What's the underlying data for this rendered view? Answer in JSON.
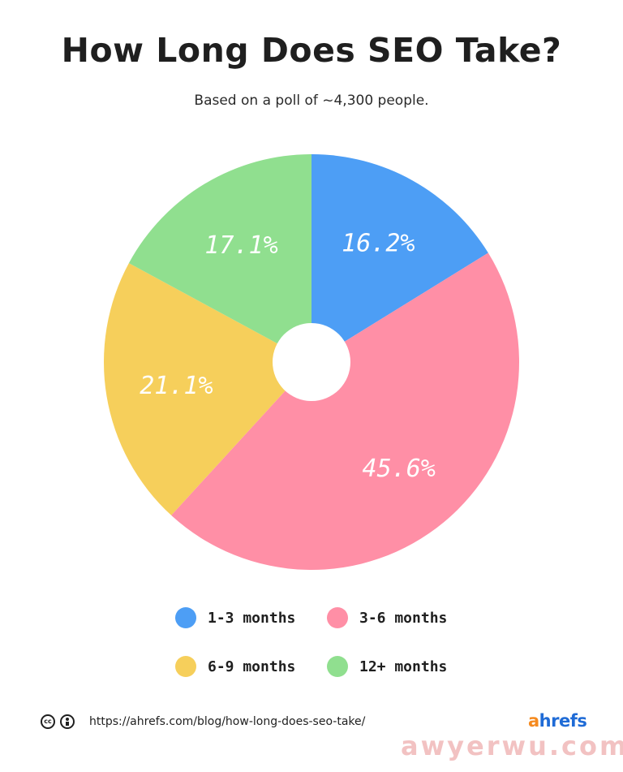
{
  "title": "How Long Does SEO Take?",
  "subtitle": "Based on a poll of ~4,300 people.",
  "chart_data": {
    "type": "pie",
    "title": "How Long Does SEO Take?",
    "subtitle": "Based on a poll of ~4,300 people.",
    "legend_position": "bottom",
    "slices": [
      {
        "label": "1-3 months",
        "value": 16.2,
        "display": "16.2%",
        "color": "#4d9ef5"
      },
      {
        "label": "3-6 months",
        "value": 45.6,
        "display": "45.6%",
        "color": "#ff8fa6"
      },
      {
        "label": "6-9 months",
        "value": 21.1,
        "display": "21.1%",
        "color": "#f6cf5b"
      },
      {
        "label": "12+ months",
        "value": 17.1,
        "display": "17.1%",
        "color": "#90df8f"
      }
    ]
  },
  "footer": {
    "license_icons": [
      "cc-icon",
      "by-icon"
    ],
    "cc_glyph": "cc",
    "url": "https://ahrefs.com/blog/how-long-does-seo-take/"
  },
  "brand": {
    "first": "a",
    "rest": "hrefs"
  },
  "watermark": "awyerwu.com"
}
